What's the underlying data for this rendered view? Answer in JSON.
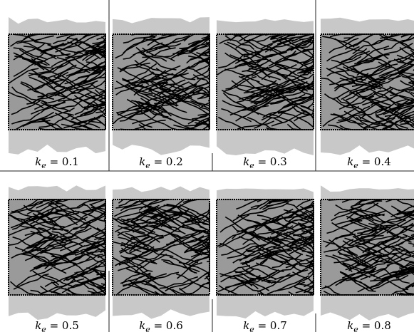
{
  "figure": {
    "panels": [
      {
        "label": {
          "base": "k",
          "sub": "e",
          "rest": " = 0.1"
        }
      },
      {
        "label": {
          "base": "k",
          "sub": "e",
          "rest": " = 0.2"
        }
      },
      {
        "label": {
          "base": "k",
          "sub": "e",
          "rest": " = 0.3"
        }
      },
      {
        "label": {
          "base": "k",
          "sub": "e",
          "rest": " = 0.4"
        }
      },
      {
        "label": {
          "base": "k",
          "sub": "e",
          "rest": " = 0.5"
        }
      },
      {
        "label": {
          "base": "k",
          "sub": "e",
          "rest": " = 0.6"
        }
      },
      {
        "label": {
          "base": "k",
          "sub": "e",
          "rest": " = 0.7"
        }
      },
      {
        "label": {
          "base": "k",
          "sub": "e",
          "rest": " = 0.8"
        }
      }
    ]
  }
}
